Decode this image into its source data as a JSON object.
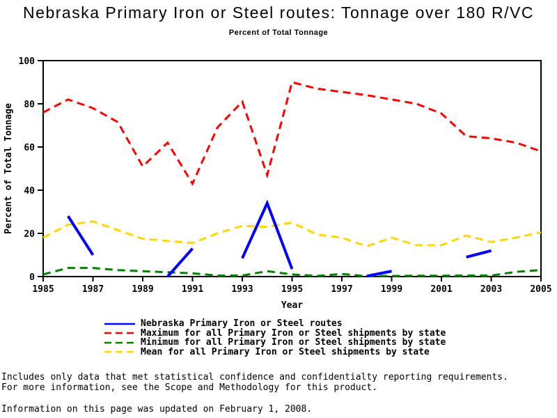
{
  "title": "Nebraska Primary Iron or Steel routes: Tonnage over 180 R/VC",
  "subtitle": "Percent of Total Tonnage",
  "footnotes": {
    "line1": "Includes only data that met statistical confidence and confidentialty reporting requirements.",
    "line2": "For more information, see the Scope and Methodology for this product.",
    "updated": "Information on this page was updated on February 1, 2008."
  },
  "chart_data": {
    "type": "line",
    "title": "Nebraska Primary Iron or Steel routes: Tonnage over 180 R/VC",
    "subtitle": "Percent of Total Tonnage",
    "xlabel": "Year",
    "ylabel": "Percent of Total Tonnage",
    "xlim": [
      1985,
      2005
    ],
    "ylim": [
      0,
      100
    ],
    "xticks": [
      1985,
      1987,
      1989,
      1991,
      1993,
      1995,
      1997,
      1999,
      2001,
      2003,
      2005
    ],
    "yticks": [
      0,
      20,
      40,
      60,
      80,
      100
    ],
    "grid": false,
    "legend_position": "bottom",
    "x": [
      1985,
      1986,
      1987,
      1988,
      1989,
      1990,
      1991,
      1992,
      1993,
      1994,
      1995,
      1996,
      1997,
      1998,
      1999,
      2000,
      2001,
      2002,
      2003,
      2004,
      2005
    ],
    "series": [
      {
        "id": "nebraska",
        "name": "Nebraska Primary Iron or Steel routes",
        "color": "#0000ff",
        "style": "solid",
        "segments": [
          [
            [
              1986,
              28
            ],
            [
              1987,
              10
            ]
          ],
          [
            [
              1990,
              0
            ],
            [
              1991,
              13
            ]
          ],
          [
            [
              1993,
              8.5
            ],
            [
              1994,
              34
            ],
            [
              1995,
              3.5
            ]
          ],
          [
            [
              1998,
              0.2
            ],
            [
              1999,
              2.5
            ]
          ],
          [
            [
              2002,
              9
            ],
            [
              2003,
              12
            ]
          ]
        ]
      },
      {
        "id": "maximum",
        "name": "Maximum for all Primary Iron or Steel shipments by state",
        "color": "#ff0000",
        "style": "dashed",
        "values": [
          76,
          82,
          78,
          71.5,
          51,
          62,
          43,
          69,
          81,
          47,
          90,
          87,
          85.5,
          84,
          82,
          80,
          75.5,
          65,
          64,
          62,
          58
        ]
      },
      {
        "id": "minimum",
        "name": "Minimum for all Primary Iron or Steel shipments by state",
        "color": "#008000",
        "style": "dashed",
        "values": [
          1,
          4,
          4,
          3,
          2.5,
          2,
          1.5,
          0.5,
          0.5,
          2.5,
          1,
          0.3,
          1.2,
          0.2,
          0.3,
          0.4,
          0.4,
          0.5,
          0.5,
          2.2,
          3
        ]
      },
      {
        "id": "mean",
        "name": "Mean for all Primary Iron or Steel shipments by state",
        "color": "#ffd700",
        "style": "dashed",
        "values": [
          18,
          24,
          25.5,
          21.5,
          17.5,
          16.5,
          15.5,
          20,
          23.5,
          23,
          25,
          19.5,
          18,
          14,
          18,
          14.5,
          14.5,
          19,
          16,
          18,
          20.5
        ]
      }
    ]
  }
}
